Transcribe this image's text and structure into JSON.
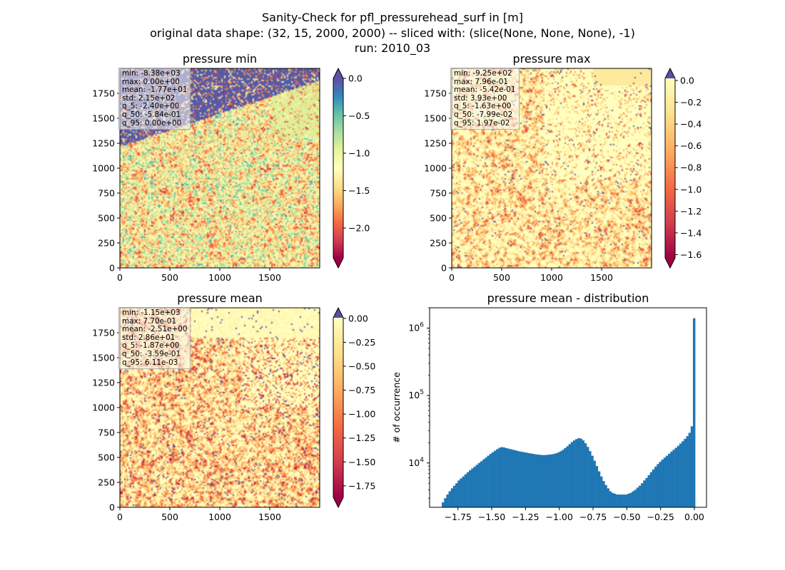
{
  "figure": {
    "title_lines": [
      "Sanity-Check for pfl_pressurehead_surf in [m]",
      "original data shape: (32, 15, 2000, 2000) -- sliced with: (slice(None, None, None), -1)",
      "run: 2010_03"
    ]
  },
  "panels": [
    {
      "title": "pressure min",
      "stats": [
        "min: -8.38e+03",
        "max: 0.00e+00",
        "mean: -1.77e+01",
        "std: 2.15e+02",
        "q_5: -2.40e+00",
        "q_50: -5.84e-01",
        "q_95: 0.00e+00"
      ],
      "colorbar_ticks": [
        "0.0",
        "−0.5",
        "−1.0",
        "−1.5",
        "−2.0"
      ],
      "colorbar_range": [
        -2.4,
        0.0
      ],
      "x_ticks": [
        "0",
        "500",
        "1000",
        "1500"
      ],
      "y_ticks": [
        "0",
        "250",
        "500",
        "750",
        "1000",
        "1250",
        "1500",
        "1750"
      ]
    },
    {
      "title": "pressure max",
      "stats": [
        "min: -9.25e+02",
        "max: 7.96e-01",
        "mean: -5.42e-01",
        "std: 3.93e+00",
        "q_5: -1.63e+00",
        "q_50: -7.99e-02",
        "q_95: 1.97e-02"
      ],
      "colorbar_ticks": [
        "0.0",
        "−0.2",
        "−0.4",
        "−0.6",
        "−0.8",
        "−1.0",
        "−1.2",
        "−1.4",
        "−1.6"
      ],
      "colorbar_range": [
        -1.63,
        0.0197
      ],
      "x_ticks": [
        "0",
        "500",
        "1000",
        "1500"
      ],
      "y_ticks": [
        "0",
        "250",
        "500",
        "750",
        "1000",
        "1250",
        "1500",
        "1750"
      ]
    },
    {
      "title": "pressure mean",
      "stats": [
        "min: -1.15e+03",
        "max: 7.70e-01",
        "mean: -2.51e+00",
        "std: 2.86e+01",
        "q_5: -1.87e+00",
        "q_50: -3.59e-01",
        "q_95: 6.11e-03"
      ],
      "colorbar_ticks": [
        "0.00",
        "−0.25",
        "−0.50",
        "−0.75",
        "−1.00",
        "−1.25",
        "−1.50",
        "−1.75"
      ],
      "colorbar_range": [
        -1.87,
        0.00611
      ],
      "x_ticks": [
        "0",
        "500",
        "1000",
        "1500"
      ],
      "y_ticks": [
        "0",
        "250",
        "500",
        "750",
        "1000",
        "1250",
        "1500",
        "1750"
      ]
    }
  ],
  "chart_data": {
    "type": "bar",
    "title": "pressure mean - distribution",
    "ylabel": "# of occurrence",
    "xlabel": "",
    "yscale": "log",
    "ylim": [
      2200,
      2000000
    ],
    "xlim": [
      -1.96,
      0.09
    ],
    "x_ticks": [
      "−1.75",
      "−1.50",
      "−1.25",
      "−1.00",
      "−0.75",
      "−0.50",
      "−0.25",
      "0.00"
    ],
    "y_ticks": [
      "10^4",
      "10^5",
      "10^6"
    ],
    "bar_color": "#1f77b4",
    "bin_range": [
      -1.87,
      0.00611
    ],
    "counts": [
      2600,
      3000,
      3400,
      3800,
      4200,
      4600,
      5000,
      5500,
      5900,
      6300,
      6800,
      7300,
      7800,
      8300,
      8800,
      9400,
      10000,
      10600,
      11300,
      12000,
      12800,
      13600,
      14400,
      15200,
      16000,
      16800,
      17200,
      17000,
      16600,
      16300,
      16000,
      15700,
      15400,
      15100,
      14800,
      14600,
      14400,
      14200,
      14000,
      13800,
      13600,
      13400,
      13300,
      13200,
      13100,
      13100,
      13200,
      13300,
      13400,
      13600,
      13900,
      14300,
      14900,
      15600,
      16600,
      17700,
      19000,
      20400,
      21600,
      22600,
      23300,
      23000,
      21600,
      19600,
      17300,
      15000,
      12800,
      10800,
      9000,
      7500,
      6300,
      5400,
      4700,
      4200,
      3800,
      3600,
      3500,
      3400,
      3400,
      3400,
      3400,
      3400,
      3500,
      3600,
      3800,
      4000,
      4300,
      4600,
      5000,
      5500,
      6000,
      6600,
      7300,
      8000,
      8800,
      9600,
      10400,
      11200,
      12000,
      12800,
      13700,
      14700,
      15700,
      16800,
      18000,
      19400,
      21000,
      22800,
      25000,
      28000,
      35000,
      1400000
    ]
  },
  "colors": {
    "spectral_stops": [
      "#9e0142",
      "#d53e4f",
      "#f46d43",
      "#fdae61",
      "#fee08b",
      "#ffffbf",
      "#e6f598",
      "#abdda4",
      "#66c2a5",
      "#3288bd",
      "#5e4fa2"
    ]
  }
}
